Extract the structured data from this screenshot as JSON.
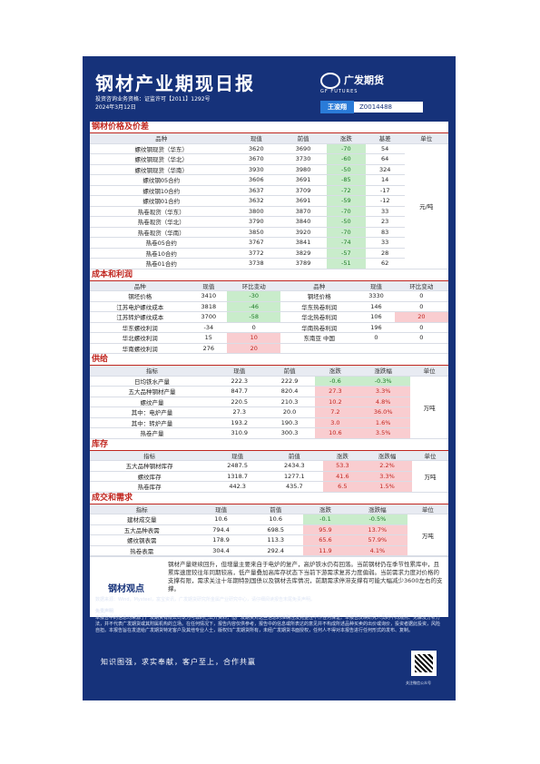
{
  "header": {
    "title": "钢材产业期现日报",
    "license": "投资咨询业务资格：证监许可【2011】1292号",
    "date": "2024年3月12日",
    "logo_cn": "广发期货",
    "logo_en": "GF FUTURES",
    "analyst_label": "王浚翔",
    "analyst_id": "Z0014488"
  },
  "sections": {
    "price": "钢材价格及价差",
    "cost": "成本和利润",
    "supply": "供给",
    "inventory": "库存",
    "demand": "成交和需求"
  },
  "price_table": {
    "headers": [
      "品种",
      "现值",
      "前值",
      "涨跌",
      "基差",
      "单位"
    ],
    "unit": "元/吨",
    "rows": [
      [
        "螺纹钢现货（华东）",
        "3620",
        "3690",
        "-70",
        "54"
      ],
      [
        "螺纹钢现货（华北）",
        "3670",
        "3730",
        "-60",
        "64"
      ],
      [
        "螺纹钢现货（华南）",
        "3930",
        "3980",
        "-50",
        "324"
      ],
      [
        "螺纹钢05合约",
        "3606",
        "3691",
        "-85",
        "14"
      ],
      [
        "螺纹钢10合约",
        "3637",
        "3709",
        "-72",
        "-17"
      ],
      [
        "螺纹钢01合约",
        "3632",
        "3691",
        "-59",
        "-12"
      ],
      [
        "热卷现货（华东）",
        "3800",
        "3870",
        "-70",
        "33"
      ],
      [
        "热卷现货（华北）",
        "3790",
        "3840",
        "-50",
        "23"
      ],
      [
        "热卷现货（华南）",
        "3850",
        "3920",
        "-70",
        "83"
      ],
      [
        "热卷05合约",
        "3767",
        "3841",
        "-74",
        "33"
      ],
      [
        "热卷10合约",
        "3772",
        "3829",
        "-57",
        "28"
      ],
      [
        "热卷01合约",
        "3738",
        "3789",
        "-51",
        "62"
      ]
    ]
  },
  "cost_table": {
    "headers": [
      "品种",
      "现值",
      "环比变动",
      "品种",
      "现值",
      "环比变动"
    ],
    "rows": [
      [
        "钢坯价格",
        "3410",
        "-30",
        "钢坯价格",
        "3330",
        "0"
      ],
      [
        "江苏电炉螺纹成本",
        "3818",
        "-46",
        "华东热卷利润",
        "146",
        "0"
      ],
      [
        "江苏转炉螺纹成本",
        "3700",
        "-58",
        "华北热卷利润",
        "106",
        "20"
      ],
      [
        "华东螺纹利润",
        "-34",
        "0",
        "华南热卷利润",
        "196",
        "0"
      ],
      [
        "华北螺纹利润",
        "15",
        "10",
        "东南亚 中国",
        "0",
        "0"
      ],
      [
        "华南螺纹利润",
        "276",
        "20",
        "",
        "",
        ""
      ]
    ]
  },
  "supply_table": {
    "headers": [
      "指标",
      "现值",
      "前值",
      "涨跌",
      "涨跌幅",
      "单位"
    ],
    "unit": "万吨",
    "rows": [
      [
        "日均铁水产量",
        "222.3",
        "222.9",
        "-0.6",
        "-0.3%"
      ],
      [
        "五大品种钢材产量",
        "847.7",
        "820.4",
        "27.3",
        "3.3%"
      ],
      [
        "螺纹产量",
        "220.5",
        "210.3",
        "10.2",
        "4.8%"
      ],
      [
        "其中：电炉产量",
        "27.3",
        "20.0",
        "7.2",
        "36.0%"
      ],
      [
        "其中：转炉产量",
        "193.2",
        "190.3",
        "3.0",
        "1.6%"
      ],
      [
        "热卷产量",
        "310.9",
        "300.3",
        "10.6",
        "3.5%"
      ]
    ]
  },
  "inventory_table": {
    "headers": [
      "指标",
      "现值",
      "前值",
      "涨跌",
      "涨跌幅",
      "单位"
    ],
    "unit": "万吨",
    "rows": [
      [
        "五大品种钢材库存",
        "2487.5",
        "2434.3",
        "53.3",
        "2.2%"
      ],
      [
        "螺纹库存",
        "1318.7",
        "1277.1",
        "41.6",
        "3.3%"
      ],
      [
        "热卷库存",
        "442.3",
        "435.7",
        "6.5",
        "1.5%"
      ]
    ]
  },
  "demand_table": {
    "headers": [
      "指标",
      "现值",
      "前值",
      "涨跌",
      "涨跌幅",
      "单位"
    ],
    "unit": "万吨",
    "rows": [
      [
        "建材成交量",
        "10.6",
        "10.6",
        "-0.1",
        "-0.5%"
      ],
      [
        "五大品种表需",
        "794.4",
        "698.5",
        "95.9",
        "13.7%"
      ],
      [
        "螺纹钢表需",
        "178.9",
        "113.3",
        "65.6",
        "57.9%"
      ],
      [
        "热卷表需",
        "304.4",
        "292.4",
        "11.9",
        "4.1%"
      ]
    ]
  },
  "viewpoint": {
    "label": "钢材观点",
    "text": "钢材产量继续回升，但增量主要来自于电炉的复产，高炉铁水仍有回落。当前钢材仍在季节性累库中，且累库速度较往年同期较高，低产量叠加高库存状态下当前下游需求复苏力度偏弱。当前需求力度对价格的支撑有限，需求关注十年期特别国债以及钢材去库情况，前期需求停滞支撑有可能大幅减少3600左右的支撑。"
  },
  "footer": {
    "source": "数据来源：Wind，Mysteel，富宝资讯，广发期货研究所金属产业研究中心，请仔细阅读报告末尾免责声明。",
    "disclaimer_title": "免责声明",
    "disclaimer": "本报告中的信息均来源于广发期货有限公司认为可靠的已公开资料，但广发期货对这些信息的准确性及完整性不作任何保证。本报告反映研究人员的不同观点、见解及分析方法，并不代表广发期货或其附属机构的立场。在任何情况下，报告内容仅供参考，报告中的信息或所表达的意见并不构成所述品种买卖的出价或询价，投资者据此投资，风险自担。本报告旨在发送给广发期货特定客户及其他专业人士，版权归广发期货所有，未经广发期货书面授权，任何人不得对本报告进行任何形式的发布、复制。",
    "slogan": "知识图强，求实奉献，客户至上，合作共赢",
    "qr_caption": "关注微信公众号"
  }
}
